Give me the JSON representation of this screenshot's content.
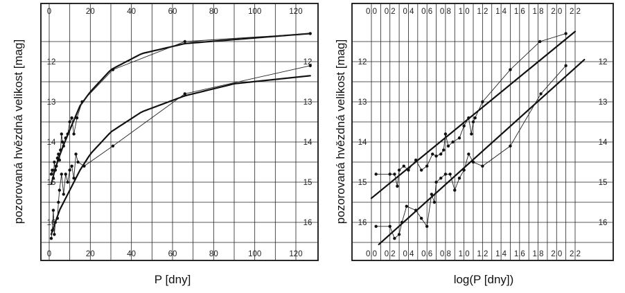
{
  "chart_data": [
    {
      "type": "line",
      "title": "",
      "xlabel": "P [dny]",
      "ylabel": "pozorovaná hvězdná velikost [mag]",
      "xlim": [
        0,
        130
      ],
      "ylim": [
        16.5,
        11.3
      ],
      "x_ticks": [
        0,
        20,
        40,
        60,
        80,
        100,
        120
      ],
      "y_ticks": [
        12,
        13,
        14,
        15,
        16
      ],
      "grid": true,
      "series": [
        {
          "role": "max-points",
          "x": [
            1.0,
            1.5,
            2.0,
            2.5,
            3.0,
            3.5,
            4.0,
            4.5,
            5.0,
            5.5,
            6.0,
            6.5,
            7.0,
            8.0,
            9.0,
            10.0,
            11.0,
            12.0,
            13.5,
            16.0,
            31.0,
            66.0,
            127.0
          ],
          "y": [
            14.8,
            14.7,
            14.9,
            14.5,
            14.7,
            14.6,
            14.4,
            14.3,
            14.45,
            14.2,
            13.8,
            14.0,
            14.1,
            13.9,
            13.8,
            13.5,
            13.4,
            13.8,
            13.4,
            13.0,
            12.2,
            11.5,
            11.3
          ]
        },
        {
          "role": "min-points",
          "x": [
            1.0,
            1.5,
            2.0,
            2.5,
            3.0,
            4.0,
            4.5,
            5.0,
            6.0,
            7.0,
            8.0,
            9.0,
            10.0,
            11.0,
            12.0,
            13.0,
            14.0,
            17.0,
            31.0,
            66.0,
            127.0
          ],
          "y": [
            16.4,
            16.2,
            15.7,
            16.3,
            16.0,
            15.9,
            15.5,
            15.2,
            14.8,
            15.3,
            14.8,
            15.0,
            14.7,
            14.6,
            14.9,
            14.3,
            14.5,
            14.6,
            14.1,
            12.8,
            12.1
          ]
        },
        {
          "role": "max-curve",
          "x": [
            1,
            3,
            6,
            10,
            15,
            20,
            30,
            45,
            66,
            90,
            127
          ],
          "y": [
            15.05,
            14.65,
            14.2,
            13.7,
            13.1,
            12.75,
            12.2,
            11.8,
            11.55,
            11.45,
            11.3
          ]
        },
        {
          "role": "min-curve",
          "x": [
            1,
            5,
            10,
            15,
            20,
            30,
            45,
            66,
            90,
            127
          ],
          "y": [
            16.3,
            15.7,
            15.2,
            14.7,
            14.3,
            13.75,
            13.25,
            12.85,
            12.55,
            12.35
          ]
        }
      ]
    },
    {
      "type": "line",
      "title": "",
      "xlabel": "log(P [dny])",
      "ylabel": "pozorovaná hvězdná velikost [mag]",
      "xlim": [
        0,
        2.3
      ],
      "ylim": [
        16.5,
        11.3
      ],
      "x_ticks": [
        "0.0",
        "0.2",
        "0.4",
        "0.6",
        "0.8",
        "1.0",
        "1.2",
        "1.4",
        "1.6",
        "1.8",
        "2.0",
        "2.2"
      ],
      "y_ticks": [
        12,
        13,
        14,
        15,
        16
      ],
      "grid": true,
      "series": [
        {
          "role": "max-points",
          "x": [
            0.05,
            0.2,
            0.25,
            0.28,
            0.3,
            0.35,
            0.4,
            0.48,
            0.54,
            0.6,
            0.66,
            0.7,
            0.75,
            0.78,
            0.8,
            0.83,
            0.88,
            0.95,
            1.0,
            1.05,
            1.08,
            1.1,
            1.12,
            1.2,
            1.5,
            1.82,
            2.1
          ],
          "y": [
            14.8,
            14.8,
            14.8,
            15.1,
            14.7,
            14.6,
            14.7,
            14.45,
            14.7,
            14.6,
            14.3,
            14.35,
            14.3,
            14.2,
            13.8,
            14.1,
            14.0,
            13.9,
            13.6,
            13.4,
            13.8,
            13.5,
            13.4,
            13.0,
            12.2,
            11.5,
            11.3
          ]
        },
        {
          "role": "min-points",
          "x": [
            0.05,
            0.2,
            0.25,
            0.3,
            0.33,
            0.38,
            0.48,
            0.54,
            0.6,
            0.65,
            0.68,
            0.7,
            0.75,
            0.8,
            0.85,
            0.9,
            0.95,
            1.0,
            1.05,
            1.1,
            1.2,
            1.5,
            1.83,
            2.1
          ],
          "y": [
            16.1,
            16.1,
            16.4,
            16.3,
            16.0,
            15.6,
            15.7,
            15.9,
            16.1,
            15.3,
            15.5,
            15.0,
            14.9,
            14.8,
            14.8,
            15.2,
            14.9,
            14.7,
            14.3,
            14.5,
            14.6,
            14.1,
            12.8,
            12.1
          ]
        },
        {
          "role": "max-fit",
          "x": [
            0.0,
            2.2
          ],
          "y": [
            15.4,
            11.25
          ]
        },
        {
          "role": "min-fit",
          "x": [
            0.08,
            2.3
          ],
          "y": [
            16.55,
            11.95
          ]
        }
      ]
    }
  ]
}
